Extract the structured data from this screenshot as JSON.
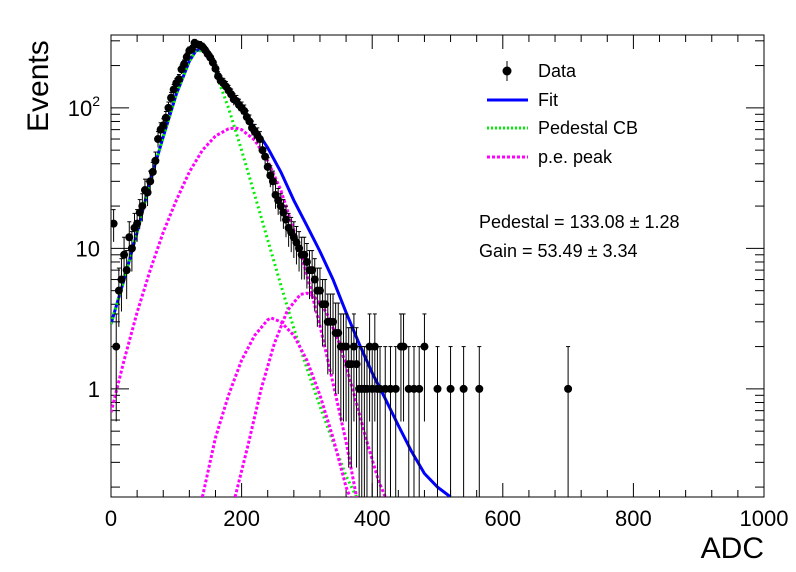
{
  "chart_data": {
    "type": "scatter",
    "xlabel": "ADC",
    "ylabel": "Events",
    "xlim": [
      0,
      1000
    ],
    "ylim": [
      0.17,
      330
    ],
    "y_scale": "log",
    "grid": false,
    "legend_position": "top-right",
    "x_ticks": [
      {
        "value": 0,
        "label": "0"
      },
      {
        "value": 200,
        "label": "200"
      },
      {
        "value": 400,
        "label": "400"
      },
      {
        "value": 600,
        "label": "600"
      },
      {
        "value": 800,
        "label": "800"
      },
      {
        "value": 1000,
        "label": "1000"
      }
    ],
    "y_ticks": [
      {
        "value": 1,
        "label": "1",
        "sup": ""
      },
      {
        "value": 10,
        "label": "10",
        "sup": ""
      },
      {
        "value": 100,
        "label": "10",
        "sup": "2"
      }
    ],
    "legend": [
      {
        "label": "Data",
        "style": "marker",
        "color": "#000000"
      },
      {
        "label": "Fit",
        "style": "solid",
        "color": "#0000ff"
      },
      {
        "label": "Pedestal CB",
        "style": "dotted",
        "color": "#00ee00"
      },
      {
        "label": "p.e. peak",
        "style": "dotted",
        "color": "#ff00ff"
      }
    ],
    "annotations": [
      {
        "text": "Pedestal = 133.08 ± 1.28"
      },
      {
        "text": "Gain = 53.49 ± 3.34"
      }
    ],
    "fit_params": {
      "pedestal": 133.08,
      "pedestal_err": 1.28,
      "gain": 53.49,
      "gain_err": 3.34
    },
    "series": [
      {
        "name": "Data",
        "kind": "points",
        "color": "#000000",
        "points": [
          [
            4,
            15
          ],
          [
            8,
            2
          ],
          [
            12,
            5
          ],
          [
            16,
            6
          ],
          [
            20,
            9
          ],
          [
            24,
            7
          ],
          [
            28,
            12
          ],
          [
            32,
            10
          ],
          [
            36,
            14
          ],
          [
            40,
            15
          ],
          [
            44,
            18
          ],
          [
            48,
            20
          ],
          [
            52,
            26
          ],
          [
            56,
            25
          ],
          [
            60,
            30
          ],
          [
            64,
            35
          ],
          [
            68,
            42
          ],
          [
            72,
            60
          ],
          [
            76,
            70
          ],
          [
            80,
            75
          ],
          [
            84,
            85
          ],
          [
            88,
            100
          ],
          [
            92,
            118
          ],
          [
            96,
            135
          ],
          [
            100,
            150
          ],
          [
            104,
            160
          ],
          [
            108,
            188
          ],
          [
            112,
            205
          ],
          [
            116,
            230
          ],
          [
            120,
            255
          ],
          [
            124,
            262
          ],
          [
            128,
            290
          ],
          [
            132,
            282
          ],
          [
            136,
            280
          ],
          [
            140,
            272
          ],
          [
            144,
            258
          ],
          [
            148,
            242
          ],
          [
            152,
            228
          ],
          [
            156,
            210
          ],
          [
            160,
            190
          ],
          [
            164,
            168
          ],
          [
            168,
            156
          ],
          [
            172,
            150
          ],
          [
            176,
            142
          ],
          [
            180,
            133
          ],
          [
            184,
            125
          ],
          [
            188,
            115
          ],
          [
            192,
            112
          ],
          [
            196,
            105
          ],
          [
            200,
            100
          ],
          [
            204,
            95
          ],
          [
            208,
            86
          ],
          [
            212,
            80
          ],
          [
            216,
            72
          ],
          [
            220,
            68
          ],
          [
            224,
            64
          ],
          [
            228,
            60
          ],
          [
            232,
            50
          ],
          [
            236,
            45
          ],
          [
            240,
            38
          ],
          [
            244,
            33
          ],
          [
            248,
            30
          ],
          [
            252,
            24
          ],
          [
            256,
            22
          ],
          [
            260,
            20
          ],
          [
            264,
            18
          ],
          [
            268,
            16
          ],
          [
            272,
            14
          ],
          [
            276,
            13
          ],
          [
            280,
            12
          ],
          [
            284,
            11
          ],
          [
            288,
            10
          ],
          [
            292,
            9
          ],
          [
            296,
            9
          ],
          [
            300,
            8
          ],
          [
            304,
            7
          ],
          [
            308,
            7
          ],
          [
            312,
            6
          ],
          [
            316,
            5
          ],
          [
            320,
            5
          ],
          [
            324,
            4
          ],
          [
            328,
            4
          ],
          [
            332,
            3
          ],
          [
            336,
            3
          ],
          [
            340,
            3
          ],
          [
            344,
            2.5
          ],
          [
            348,
            2.5
          ],
          [
            352,
            2
          ],
          [
            356,
            2
          ],
          [
            360,
            2
          ],
          [
            364,
            1.5
          ],
          [
            368,
            1.5
          ],
          [
            372,
            2
          ],
          [
            376,
            1.5
          ],
          [
            380,
            1
          ],
          [
            384,
            1
          ],
          [
            388,
            1
          ],
          [
            392,
            1
          ],
          [
            396,
            2
          ],
          [
            400,
            1
          ],
          [
            404,
            2
          ],
          [
            408,
            1
          ],
          [
            412,
            1
          ],
          [
            420,
            1
          ],
          [
            428,
            1
          ],
          [
            436,
            1
          ],
          [
            444,
            2
          ],
          [
            448,
            2
          ],
          [
            456,
            1
          ],
          [
            464,
            1
          ],
          [
            472,
            1
          ],
          [
            480,
            2
          ],
          [
            500,
            1
          ],
          [
            520,
            1
          ],
          [
            540,
            1
          ],
          [
            564,
            1
          ],
          [
            700,
            1
          ]
        ]
      },
      {
        "name": "Fit",
        "kind": "curve",
        "color": "#0000ff",
        "points": [
          [
            0,
            2.9
          ],
          [
            20,
            6
          ],
          [
            40,
            13
          ],
          [
            60,
            30
          ],
          [
            80,
            62
          ],
          [
            100,
            125
          ],
          [
            120,
            215
          ],
          [
            130,
            255
          ],
          [
            140,
            262
          ],
          [
            150,
            238
          ],
          [
            160,
            190
          ],
          [
            180,
            132
          ],
          [
            200,
            97
          ],
          [
            220,
            72
          ],
          [
            240,
            52
          ],
          [
            260,
            35
          ],
          [
            280,
            22
          ],
          [
            300,
            14.5
          ],
          [
            320,
            9.5
          ],
          [
            340,
            6
          ],
          [
            360,
            3.5
          ],
          [
            380,
            2.1
          ],
          [
            400,
            1.3
          ],
          [
            420,
            0.85
          ],
          [
            440,
            0.55
          ],
          [
            460,
            0.36
          ],
          [
            480,
            0.25
          ],
          [
            500,
            0.2
          ],
          [
            520,
            0.17
          ]
        ]
      },
      {
        "name": "Pedestal CB",
        "kind": "curve",
        "color": "#00ee00",
        "points": [
          [
            0,
            2.9
          ],
          [
            20,
            6
          ],
          [
            40,
            13
          ],
          [
            60,
            30
          ],
          [
            80,
            62
          ],
          [
            100,
            125
          ],
          [
            120,
            215
          ],
          [
            130,
            255
          ],
          [
            140,
            255
          ],
          [
            150,
            235
          ],
          [
            160,
            178
          ],
          [
            180,
            100
          ],
          [
            200,
            50
          ],
          [
            220,
            24
          ],
          [
            240,
            11.5
          ],
          [
            260,
            5.5
          ],
          [
            280,
            2.7
          ],
          [
            300,
            1.4
          ],
          [
            320,
            0.75
          ],
          [
            340,
            0.42
          ],
          [
            360,
            0.24
          ],
          [
            376,
            0.17
          ]
        ]
      },
      {
        "name": "p.e. peak",
        "kind": "curve",
        "color": "#ff00ff",
        "points": [
          [
            0,
            0.68
          ],
          [
            20,
            1.6
          ],
          [
            40,
            3.5
          ],
          [
            60,
            7
          ],
          [
            80,
            13
          ],
          [
            100,
            22
          ],
          [
            120,
            35
          ],
          [
            140,
            50
          ],
          [
            160,
            63
          ],
          [
            180,
            71
          ],
          [
            190,
            72
          ],
          [
            200,
            70
          ],
          [
            220,
            59
          ],
          [
            240,
            42
          ],
          [
            260,
            26
          ],
          [
            280,
            13.5
          ],
          [
            300,
            6.5
          ],
          [
            320,
            2.8
          ],
          [
            340,
            1.1
          ],
          [
            360,
            0.42
          ],
          [
            376,
            0.17
          ]
        ]
      },
      {
        "name": "p.e. peak",
        "kind": "curve",
        "color": "#ff00ff",
        "points": [
          [
            140,
            0.17
          ],
          [
            160,
            0.45
          ],
          [
            180,
            0.9
          ],
          [
            200,
            1.6
          ],
          [
            220,
            2.4
          ],
          [
            240,
            3.1
          ],
          [
            245,
            3.2
          ],
          [
            260,
            3.0
          ],
          [
            280,
            2.4
          ],
          [
            300,
            1.6
          ],
          [
            320,
            0.9
          ],
          [
            340,
            0.45
          ],
          [
            360,
            0.2
          ],
          [
            366,
            0.17
          ]
        ]
      },
      {
        "name": "p.e. peak",
        "kind": "curve",
        "color": "#ff00ff",
        "points": [
          [
            190,
            0.17
          ],
          [
            210,
            0.4
          ],
          [
            230,
            1.0
          ],
          [
            250,
            2.1
          ],
          [
            270,
            3.6
          ],
          [
            290,
            4.7
          ],
          [
            300,
            4.8
          ],
          [
            310,
            4.6
          ],
          [
            330,
            3.5
          ],
          [
            350,
            2.1
          ],
          [
            370,
            1.0
          ],
          [
            390,
            0.45
          ],
          [
            410,
            0.22
          ],
          [
            420,
            0.17
          ]
        ]
      }
    ]
  }
}
